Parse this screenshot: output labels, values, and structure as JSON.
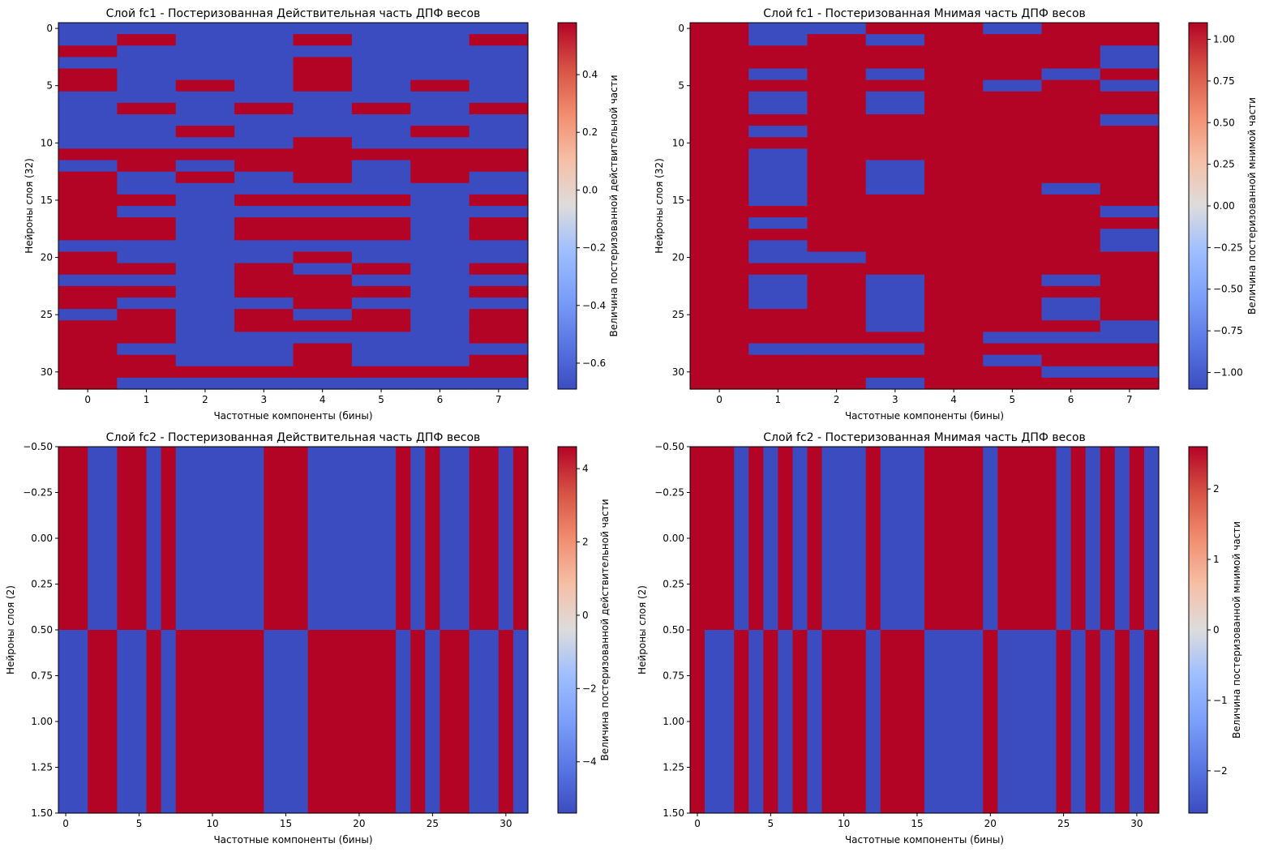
{
  "colors": {
    "low": "#3b4cc0",
    "high": "#b40426",
    "mid": "#dddcdc"
  },
  "chart_data": [
    {
      "type": "heatmap",
      "title": "Слой fc1 - Постеризованная Действительная часть ДПФ весов",
      "xlabel": "Частотные компоненты (бины)",
      "ylabel": "Нейроны слоя (32)",
      "colorbar_label": "Величина постеризованной действительной части",
      "xticks": [
        0,
        1,
        2,
        3,
        4,
        5,
        6,
        7
      ],
      "yticks": [
        0,
        5,
        10,
        15,
        20,
        25,
        30
      ],
      "ytick_labels": [
        "0",
        "5",
        "10",
        "15",
        "20",
        "25",
        "30"
      ],
      "xlim": [
        -0.5,
        7.5
      ],
      "ylim": [
        31.5,
        -0.5
      ],
      "vmin": -0.69,
      "vmax": 0.58,
      "low_value": -0.69,
      "high_value": 0.58,
      "cbar_ticks": [
        0.4,
        0.2,
        0.0,
        -0.2,
        -0.4,
        -0.6
      ],
      "cbar_tick_labels": [
        "0.4",
        "0.2",
        "0.0",
        "−0.2",
        "−0.4",
        "−0.6"
      ],
      "grid": false,
      "rows": [
        "00000000",
        "01001001",
        "10000000",
        "00001000",
        "10001000",
        "10101010",
        "00000000",
        "01010101",
        "00000000",
        "00100010",
        "00001000",
        "11111111",
        "01011011",
        "10101010",
        "10000000",
        "11011101",
        "10000000",
        "11011101",
        "11011101",
        "00000000",
        "10001000",
        "11010101",
        "00011000",
        "11011101",
        "10001000",
        "01010101",
        "11011101",
        "11000001",
        "10001000",
        "11001001",
        "11111111",
        "10000000"
      ]
    },
    {
      "type": "heatmap",
      "title": "Слой fc1 - Постеризованная Мнимая часть ДПФ весов",
      "xlabel": "Частотные компоненты (бины)",
      "ylabel": "Нейроны слоя (32)",
      "colorbar_label": "Величина постеризованной мнимой части",
      "xticks": [
        0,
        1,
        2,
        3,
        4,
        5,
        6,
        7
      ],
      "yticks": [
        0,
        5,
        10,
        15,
        20,
        25,
        30
      ],
      "ytick_labels": [
        "0",
        "5",
        "10",
        "15",
        "20",
        "25",
        "30"
      ],
      "xlim": [
        -0.5,
        7.5
      ],
      "ylim": [
        31.5,
        -0.5
      ],
      "vmin": -1.1,
      "vmax": 1.1,
      "low_value": -1.1,
      "high_value": 1.1,
      "cbar_ticks": [
        1.0,
        0.75,
        0.5,
        0.25,
        0.0,
        -0.25,
        -0.5,
        -0.75,
        -1.0
      ],
      "cbar_tick_labels": [
        "1.00",
        "0.75",
        "0.50",
        "0.25",
        "0.00",
        "−0.25",
        "−0.50",
        "−0.75",
        "−1.00"
      ],
      "grid": false,
      "rows": [
        "10011011",
        "10101111",
        "11111110",
        "11111110",
        "10101101",
        "11111010",
        "10101111",
        "10101111",
        "11111110",
        "10111111",
        "11111111",
        "10111111",
        "10101111",
        "10101111",
        "10101101",
        "10111111",
        "11111110",
        "10111111",
        "11111110",
        "10111110",
        "10011111",
        "11111111",
        "10101101",
        "10101111",
        "10101101",
        "11101101",
        "11101110",
        "11111000",
        "10001111",
        "11111011",
        "11111100",
        "11101111"
      ]
    },
    {
      "type": "heatmap",
      "title": "Слой fc2 - Постеризованная Действительная часть ДПФ весов",
      "xlabel": "Частотные компоненты (бины)",
      "ylabel": "Нейроны слоя (2)",
      "colorbar_label": "Величина постеризованной действительной части",
      "xticks": [
        0,
        5,
        10,
        15,
        20,
        25,
        30
      ],
      "yticks": [
        -0.5,
        -0.25,
        0.0,
        0.25,
        0.5,
        0.75,
        1.0,
        1.25,
        1.5
      ],
      "ytick_labels": [
        "−0.50",
        "−0.25",
        "0.00",
        "0.25",
        "0.50",
        "0.75",
        "1.00",
        "1.25",
        "1.50"
      ],
      "xlim": [
        -0.5,
        31.5
      ],
      "ylim": [
        1.5,
        -0.5
      ],
      "vmin": -5.4,
      "vmax": 4.6,
      "low_value": -5.4,
      "high_value": 4.6,
      "cbar_ticks": [
        4,
        2,
        0,
        -2,
        -4
      ],
      "cbar_tick_labels": [
        "4",
        "2",
        "0",
        "−2",
        "−4"
      ],
      "grid": false,
      "rows": [
        "11001101000000111000000101001101",
        "00110010111111000111111010110010"
      ]
    },
    {
      "type": "heatmap",
      "title": "Слой fc2 - Постеризованная Мнимая часть ДПФ весов",
      "xlabel": "Частотные компоненты (бины)",
      "ylabel": "Нейроны слоя (2)",
      "colorbar_label": "Величина постеризованной мнимой части",
      "xticks": [
        0,
        5,
        10,
        15,
        20,
        25,
        30
      ],
      "yticks": [
        -0.5,
        -0.25,
        0.0,
        0.25,
        0.5,
        0.75,
        1.0,
        1.25,
        1.5
      ],
      "ytick_labels": [
        "−0.50",
        "−0.25",
        "0.00",
        "0.25",
        "0.50",
        "0.75",
        "1.00",
        "1.25",
        "1.50"
      ],
      "xlim": [
        -0.5,
        31.5
      ],
      "ylim": [
        1.5,
        -0.5
      ],
      "vmin": -2.6,
      "vmax": 2.6,
      "low_value": -2.6,
      "high_value": 2.6,
      "cbar_ticks": [
        2,
        1,
        0,
        -1,
        -2
      ],
      "cbar_tick_labels": [
        "2",
        "1",
        "0",
        "−1",
        "−2"
      ],
      "grid": false,
      "rows": [
        "11101010100010001111011110101010",
        "10010101011101110000100001010101"
      ]
    }
  ]
}
